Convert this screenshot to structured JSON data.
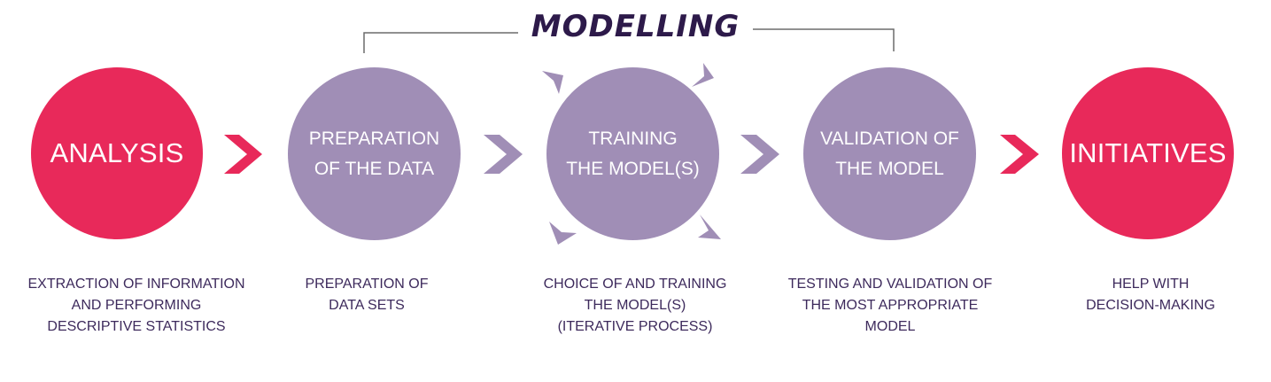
{
  "colors": {
    "pink": "#e8295a",
    "purple": "#a08eb6",
    "text": "#3d2a5c",
    "title": "#2d1a4a",
    "bracket": "#6b6b6b"
  },
  "modelling_label": "MODELLING",
  "steps": [
    {
      "id": "analysis",
      "circle_lines": [
        "ANALYSIS"
      ],
      "description": [
        "EXTRACTION OF INFORMATION",
        "AND PERFORMING",
        "DESCRIPTIVE STATISTICS"
      ]
    },
    {
      "id": "preparation",
      "circle_lines": [
        "PREPARATION",
        "OF THE DATA"
      ],
      "description": [
        "PREPARATION OF",
        "DATA SETS"
      ]
    },
    {
      "id": "training",
      "circle_lines": [
        "TRAINING",
        "THE MODEL(S)"
      ],
      "description": [
        "CHOICE OF AND TRAINING",
        "THE MODEL(S)",
        "(ITERATIVE PROCESS)"
      ]
    },
    {
      "id": "validation",
      "circle_lines": [
        "VALIDATION OF",
        "THE MODEL"
      ],
      "description": [
        "TESTING AND VALIDATION OF",
        "THE MOST APPROPRIATE",
        "MODEL"
      ]
    },
    {
      "id": "initiatives",
      "circle_lines": [
        "INITIATIVES"
      ],
      "description": [
        "HELP WITH",
        "DECISION-MAKING"
      ]
    }
  ]
}
